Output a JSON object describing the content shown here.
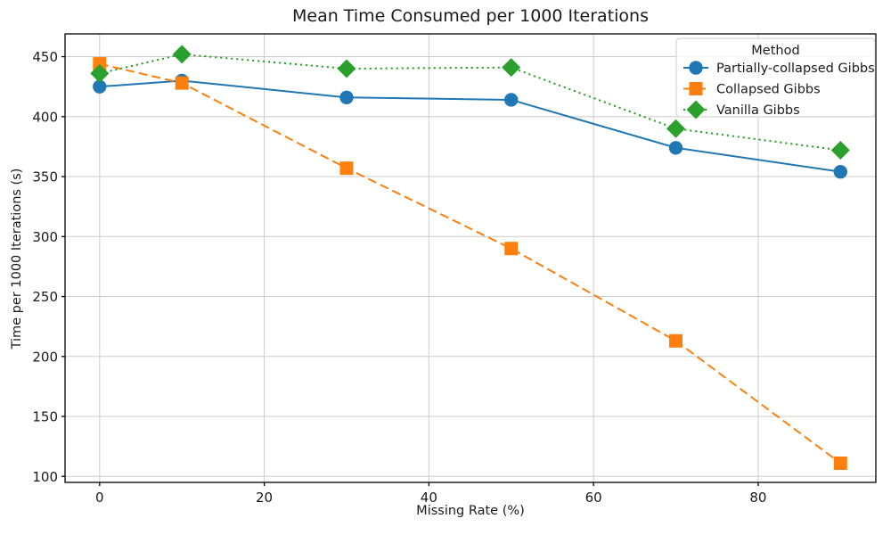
{
  "chart_data": {
    "type": "line",
    "title": "Mean Time Consumed per 1000 Iterations",
    "xlabel": "Missing Rate (%)",
    "ylabel": "Time per 1000 Iterations (s)",
    "x": [
      0,
      10,
      30,
      50,
      70,
      90
    ],
    "series": [
      {
        "name": "Partially-collapsed Gibbs",
        "color": "#1f77b4",
        "linestyle": "solid",
        "marker": "circle",
        "values": [
          425,
          430,
          416,
          414,
          374,
          354
        ]
      },
      {
        "name": "Collapsed Gibbs",
        "color": "#ff7f0e",
        "linestyle": "dashed",
        "marker": "square",
        "values": [
          444,
          428,
          357,
          290,
          213,
          111
        ]
      },
      {
        "name": "Vanilla Gibbs",
        "color": "#2ca02c",
        "linestyle": "dotted",
        "marker": "diamond",
        "values": [
          436,
          452,
          440,
          441,
          390,
          372
        ]
      }
    ],
    "xticks": [
      0,
      20,
      40,
      60,
      80
    ],
    "yticks": [
      100,
      150,
      200,
      250,
      300,
      350,
      400,
      450
    ],
    "xlim": [
      -4.2,
      94.3
    ],
    "ylim": [
      95,
      469
    ],
    "grid": true,
    "legend": {
      "title": "Method",
      "position": "upper right"
    },
    "colors": {
      "grid": "#cccccc",
      "spine": "#000000",
      "text": "#1a1a1a",
      "legend_border": "#cccccc",
      "background": "#ffffff"
    }
  }
}
